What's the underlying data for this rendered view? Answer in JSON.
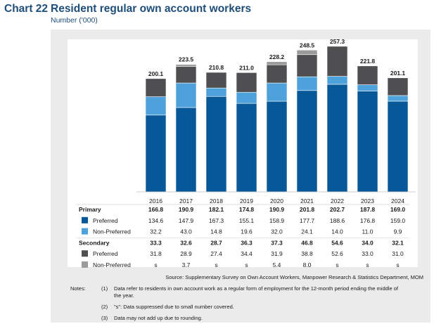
{
  "title": {
    "number": "Chart 22",
    "text": "Resident regular own account workers"
  },
  "subtitle": "Number ('000)",
  "colors": {
    "primary_preferred": "#075898",
    "primary_non_preferred": "#4da2dc",
    "secondary_preferred": "#4f4f51",
    "secondary_non_preferred": "#9a9a9a"
  },
  "chart_data": {
    "type": "bar",
    "stacked": true,
    "categories": [
      "2016",
      "2017",
      "2018",
      "2019",
      "2020",
      "2021",
      "2022",
      "2023",
      "2024"
    ],
    "ylim": [
      0,
      260
    ],
    "totals": [
      "200.1",
      "223.5",
      "210.8",
      "211.0",
      "228.2",
      "248.5",
      "257.3",
      "221.8",
      "201.1"
    ],
    "series": [
      {
        "name": "Preferred",
        "group": "Primary",
        "color_key": "primary_preferred",
        "values": [
          134.6,
          147.9,
          167.3,
          155.1,
          158.9,
          177.7,
          188.6,
          176.8,
          159.0
        ],
        "labels": [
          "134.6",
          "147.9",
          "167.3",
          "155.1",
          "158.9",
          "177.7",
          "188.6",
          "176.8",
          "159.0"
        ]
      },
      {
        "name": "Non-Preferred",
        "group": "Primary",
        "color_key": "primary_non_preferred",
        "values": [
          32.2,
          43.0,
          14.8,
          19.6,
          32.0,
          24.1,
          14.0,
          11.0,
          9.9
        ],
        "labels": [
          "32.2",
          "43.0",
          "14.8",
          "19.6",
          "32.0",
          "24.1",
          "14.0",
          "11.0",
          "9.9"
        ]
      },
      {
        "name": "Preferred",
        "group": "Secondary",
        "color_key": "secondary_preferred",
        "values": [
          31.8,
          28.9,
          27.4,
          34.4,
          31.9,
          38.8,
          52.6,
          33.0,
          31.0
        ],
        "labels": [
          "31.8",
          "28.9",
          "27.4",
          "34.4",
          "31.9",
          "38.8",
          "52.6",
          "33.0",
          "31.0"
        ]
      },
      {
        "name": "Non-Preferred",
        "group": "Secondary",
        "color_key": "secondary_non_preferred",
        "values": [
          0,
          3.7,
          0,
          0,
          5.4,
          8.0,
          0,
          0,
          0
        ],
        "labels": [
          "s",
          "3.7",
          "s",
          "s",
          "5.4",
          "8.0",
          "s",
          "s",
          "s"
        ]
      }
    ],
    "table": {
      "group_rows": [
        {
          "label": "Primary",
          "values": [
            "166.8",
            "190.9",
            "182.1",
            "174.8",
            "190.9",
            "201.8",
            "202.7",
            "187.8",
            "169.0"
          ]
        },
        {
          "label": "Secondary",
          "values": [
            "33.3",
            "32.6",
            "28.7",
            "36.3",
            "37.3",
            "46.8",
            "54.6",
            "34.0",
            "32.1"
          ]
        }
      ]
    }
  },
  "source": "Source: Supplementary Survey on Own Account Workers, Manpower Research & Statistics Department, MOM",
  "notes": {
    "label": "Notes:",
    "items": [
      {
        "num": "(1)",
        "text": "Data refer to residents in own account work as a regular form of employment for the 12-month period ending the middle of",
        "cont": "the year."
      },
      {
        "num": "(2)",
        "text": "\"s\": Data suppressed due to small number covered."
      },
      {
        "num": "(3)",
        "text": "Data may not add up due to rounding."
      }
    ]
  }
}
